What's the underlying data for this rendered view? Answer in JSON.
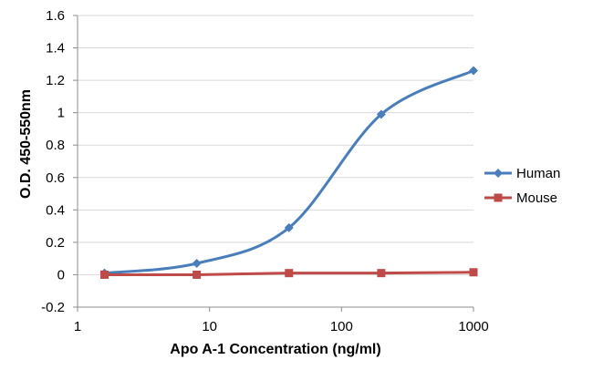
{
  "chart_data": {
    "type": "line",
    "title": "",
    "xlabel": "Apo A-1 Concentration (ng/ml)",
    "ylabel": "O.D. 450-550nm",
    "x_scale": "log",
    "xlim": [
      1,
      1000
    ],
    "ylim": [
      -0.2,
      1.6
    ],
    "x_ticks": [
      "1",
      "10",
      "100",
      "1000"
    ],
    "y_ticks": [
      "-0.2",
      "0",
      "0.2",
      "0.4",
      "0.6",
      "0.8",
      "1",
      "1.2",
      "1.4",
      "1.6"
    ],
    "grid": "horizontal",
    "legend_position": "right",
    "series": [
      {
        "name": "Human",
        "color": "#4a7ebb",
        "marker": "diamond",
        "smooth": true,
        "x": [
          1.6,
          8,
          40,
          200,
          1000
        ],
        "y": [
          0.01,
          0.07,
          0.29,
          0.99,
          1.26
        ]
      },
      {
        "name": "Mouse",
        "color": "#be4b48",
        "marker": "square",
        "smooth": false,
        "x": [
          1.6,
          8,
          40,
          200,
          1000
        ],
        "y": [
          0.0,
          0.0,
          0.01,
          0.01,
          0.015
        ]
      }
    ]
  }
}
